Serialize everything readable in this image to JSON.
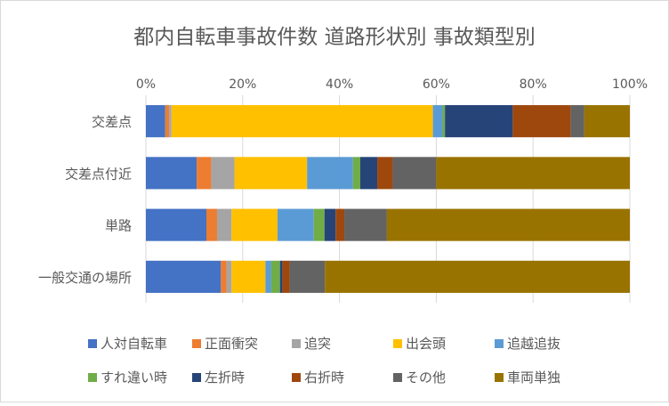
{
  "chart_data": {
    "type": "bar",
    "orientation": "horizontal",
    "stacked": "percent",
    "title": "都内自転車事故件数 道路形状別 事故類型別",
    "categories": [
      "交差点",
      "交差点付近",
      "単路",
      "一般交通の場所"
    ],
    "xlim": [
      0,
      100
    ],
    "x_ticks": [
      "0%",
      "20%",
      "40%",
      "60%",
      "80%",
      "100%"
    ],
    "grid": "vertical",
    "legend_position": "bottom",
    "series": [
      {
        "name": "人対自転車",
        "color": "#4472C4",
        "values": [
          4.0,
          10.5,
          12.5,
          15.5
        ]
      },
      {
        "name": "正面衝突",
        "color": "#ED7D31",
        "values": [
          0.8,
          3.0,
          2.2,
          1.2
        ]
      },
      {
        "name": "追突",
        "color": "#A5A5A5",
        "values": [
          0.5,
          4.8,
          3.0,
          1.0
        ]
      },
      {
        "name": "出会頭",
        "color": "#FFC000",
        "values": [
          54.0,
          15.0,
          9.5,
          7.0
        ]
      },
      {
        "name": "追越追抜",
        "color": "#5B9BD5",
        "values": [
          2.0,
          9.5,
          7.5,
          1.2
        ]
      },
      {
        "name": "すれ違い時",
        "color": "#70AD47",
        "values": [
          0.5,
          1.5,
          2.2,
          1.8
        ]
      },
      {
        "name": "左折時",
        "color": "#264478",
        "values": [
          14.0,
          3.5,
          2.3,
          0.5
        ]
      },
      {
        "name": "右折時",
        "color": "#9E480E",
        "values": [
          12.0,
          3.2,
          1.8,
          1.5
        ]
      },
      {
        "name": "その他",
        "color": "#636363",
        "values": [
          2.8,
          9.0,
          8.8,
          7.3
        ]
      },
      {
        "name": "車両単独",
        "color": "#997300",
        "values": [
          9.4,
          40.0,
          50.2,
          63.0
        ]
      }
    ]
  }
}
